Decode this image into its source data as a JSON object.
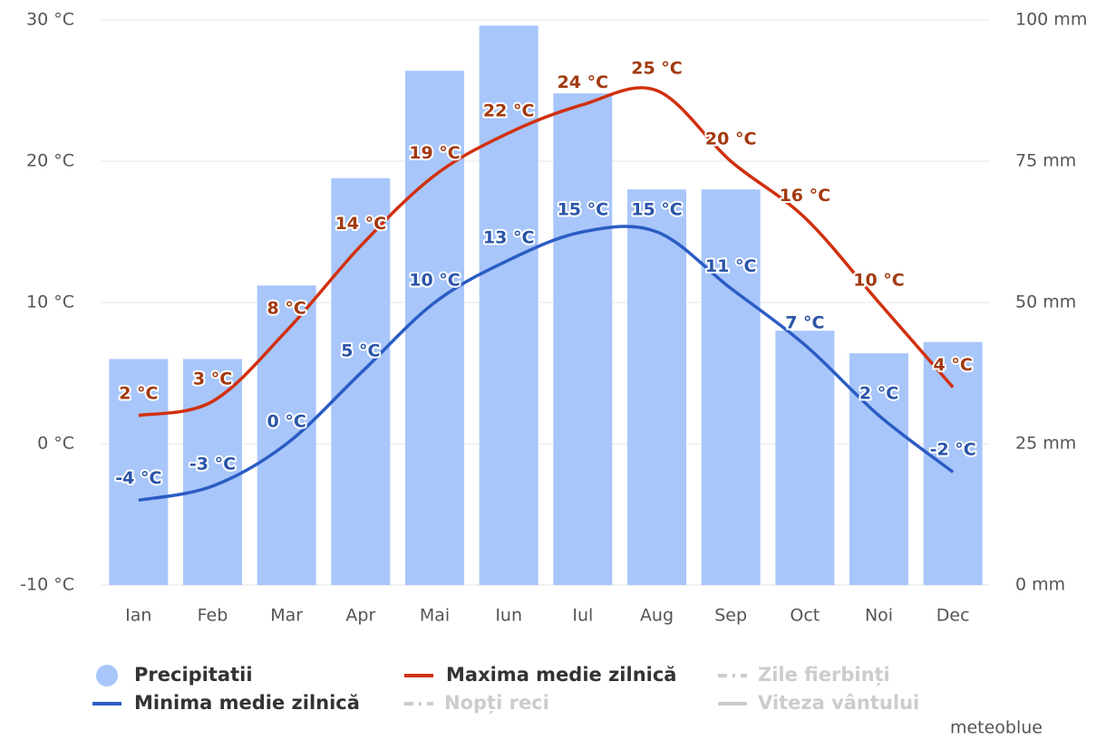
{
  "chart_data": {
    "type": "combo",
    "categories": [
      "Ian",
      "Feb",
      "Mar",
      "Apr",
      "Mai",
      "Iun",
      "Iul",
      "Aug",
      "Sep",
      "Oct",
      "Noi",
      "Dec"
    ],
    "ylim": [
      -10,
      30
    ],
    "yticks": [
      {
        "value": -10,
        "label": "-10 °C"
      },
      {
        "value": 0,
        "label": "0 °C"
      },
      {
        "value": 10,
        "label": "10 °C"
      },
      {
        "value": 20,
        "label": "20 °C"
      },
      {
        "value": 30,
        "label": "30 °C"
      }
    ],
    "y2lim": [
      0,
      100
    ],
    "y2ticks": [
      {
        "value": 0,
        "label": "0 mm"
      },
      {
        "value": 25,
        "label": "25 mm"
      },
      {
        "value": 50,
        "label": "50 mm"
      },
      {
        "value": 75,
        "label": "75 mm"
      },
      {
        "value": 100,
        "label": "100 mm"
      }
    ],
    "grid": true,
    "series": [
      {
        "name": "Precipitatii",
        "type": "bar",
        "axis": "y2",
        "color": "#a8c6fa",
        "values": [
          40,
          40,
          53,
          72,
          91,
          99,
          87,
          70,
          70,
          45,
          41,
          43
        ]
      },
      {
        "name": "Maxima medie zilnică",
        "type": "line",
        "color": "#d1300f",
        "label_color": "#a23a10",
        "values": [
          2,
          3,
          8,
          14,
          19,
          22,
          24,
          25,
          20,
          16,
          10,
          4
        ],
        "value_labels": [
          "2 °C",
          "3 °C",
          "8 °C",
          "14 °C",
          "19 °C",
          "22 °C",
          "24 °C",
          "25 °C",
          "20 °C",
          "16 °C",
          "10 °C",
          "4 °C"
        ]
      },
      {
        "name": "Minima medie zilnică",
        "type": "line",
        "color": "#2b5cc4",
        "label_color": "#2b55a8",
        "values": [
          -4,
          -3,
          0,
          5,
          10,
          13,
          15,
          15,
          11,
          7,
          2,
          -2
        ],
        "value_labels": [
          "-4 °C",
          "-3 °C",
          "0 °C",
          "5 °C",
          "10 °C",
          "13 °C",
          "15 °C",
          "15 °C",
          "11 °C",
          "7 °C",
          "2 °C",
          "-2 °C"
        ]
      }
    ],
    "hidden_series": [
      {
        "name": "Zile fierbinți",
        "color": "#cccccc"
      },
      {
        "name": "Nopți reci",
        "color": "#cccccc"
      },
      {
        "name": "Viteza vântului",
        "color": "#cccccc"
      }
    ],
    "credit": "meteoblue"
  }
}
